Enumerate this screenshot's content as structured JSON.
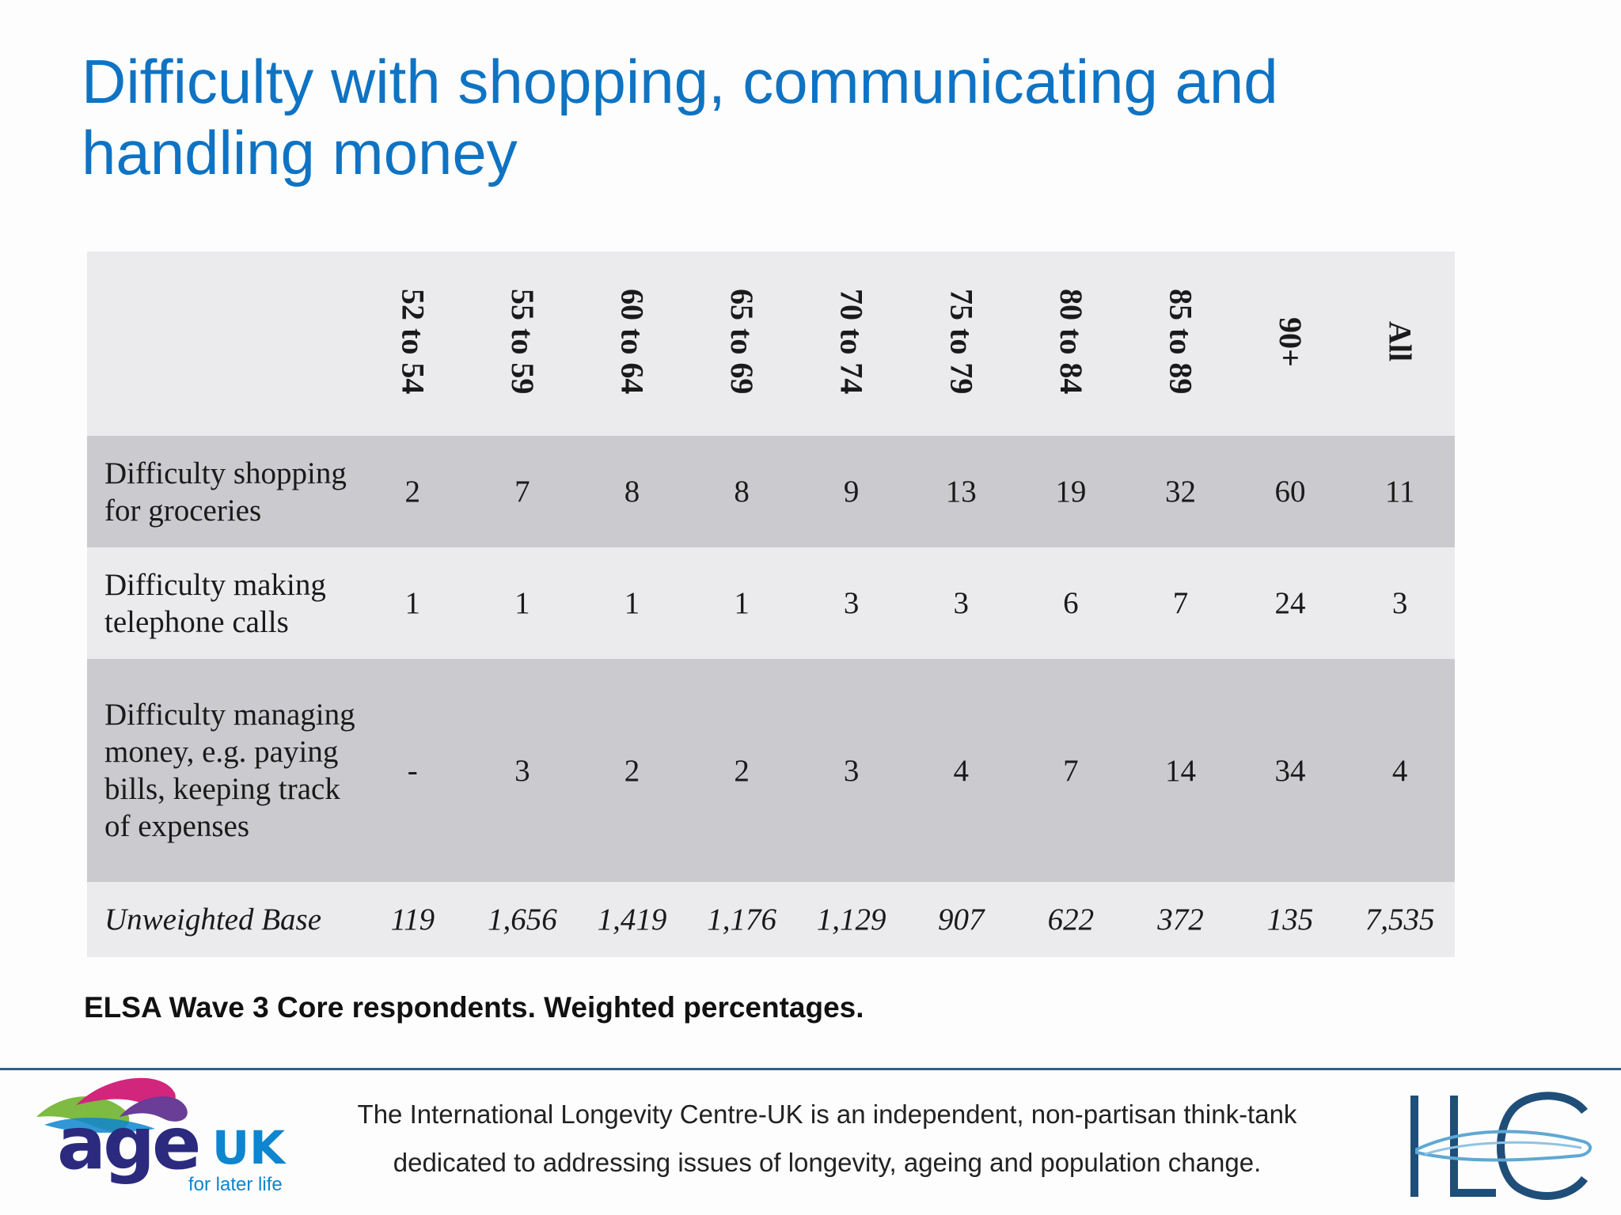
{
  "title": "Difficulty with shopping, communicating and handling money",
  "table": {
    "columns": [
      "52 to 54",
      "55 to 59",
      "60 to 64",
      "65 to 69",
      "70 to 74",
      "75 to 79",
      "80 to 84",
      "85 to 89",
      "90+",
      "All"
    ],
    "rows": [
      {
        "label": "Difficulty shopping for groceries",
        "values": [
          "2",
          "7",
          "8",
          "8",
          "9",
          "13",
          "19",
          "32",
          "60",
          "11"
        ]
      },
      {
        "label": "Difficulty making telephone calls",
        "values": [
          "1",
          "1",
          "1",
          "1",
          "3",
          "3",
          "6",
          "7",
          "24",
          "3"
        ]
      },
      {
        "label": "Difficulty managing money, e.g. paying bills, keeping track of expenses",
        "values": [
          "-",
          "3",
          "2",
          "2",
          "3",
          "4",
          "7",
          "14",
          "34",
          "4"
        ]
      },
      {
        "label": "Unweighted Base",
        "values": [
          "119",
          "1,656",
          "1,419",
          "1,176",
          "1,129",
          "907",
          "622",
          "372",
          "135",
          "7,535"
        ]
      }
    ]
  },
  "note": "ELSA Wave 3 Core respondents. Weighted percentages.",
  "footer": {
    "line1": "The International Longevity Centre-UK is an independent, non-partisan think-tank",
    "line2": "dedicated to addressing issues of longevity, ageing and population change."
  },
  "logos": {
    "ageuk_word": "age",
    "ageuk_uk": "UK",
    "ageuk_tagline": "for later life",
    "ilc": "ILC"
  },
  "colors": {
    "title": "#0f73c3",
    "row_shade": "#cbcbcf",
    "row_light": "#ebebee",
    "footer_rule": "#2f5e88",
    "ageuk_navy": "#2b2a7e",
    "ageuk_blue": "#0d85cf",
    "ilc_navy": "#1f4e79"
  }
}
